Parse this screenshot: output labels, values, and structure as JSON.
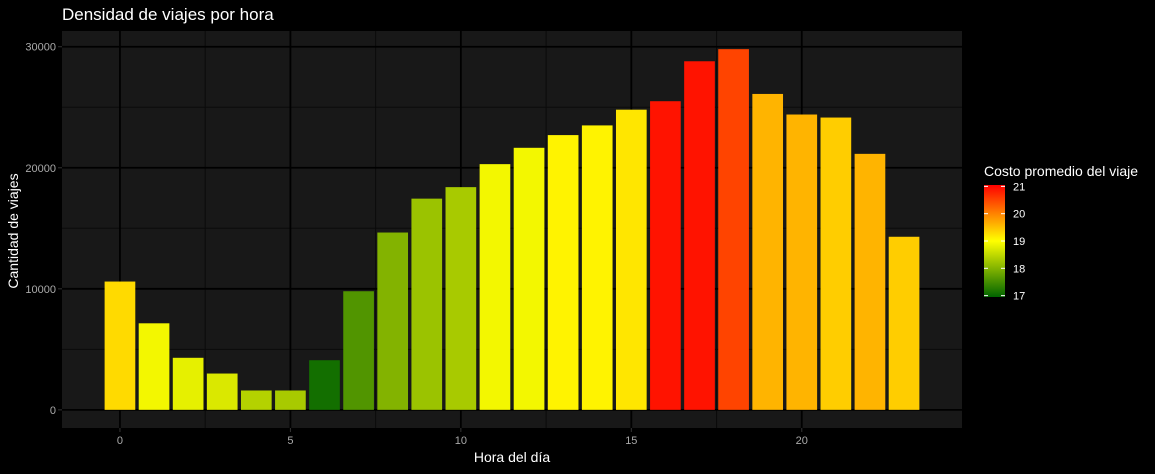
{
  "chart_data": {
    "type": "bar",
    "title": "Densidad de viajes por hora",
    "xlabel": "Hora del día",
    "ylabel": "Cantidad de viajes",
    "x": [
      0,
      1,
      2,
      3,
      4,
      5,
      6,
      7,
      8,
      9,
      10,
      11,
      12,
      13,
      14,
      15,
      16,
      17,
      18,
      19,
      20,
      21,
      22,
      23
    ],
    "values": [
      10600,
      7150,
      4300,
      3000,
      1600,
      1600,
      4100,
      9800,
      14650,
      17450,
      18400,
      20300,
      21650,
      22700,
      23500,
      24800,
      25500,
      28800,
      29800,
      26100,
      24400,
      24150,
      21150,
      14300
    ],
    "fill_values": [
      19.3,
      18.9,
      18.8,
      18.7,
      18.4,
      18.3,
      17.1,
      17.6,
      18.0,
      18.2,
      18.3,
      18.9,
      18.9,
      19.1,
      19.1,
      19.2,
      20.9,
      20.9,
      20.5,
      19.6,
      19.6,
      19.4,
      19.6,
      19.4
    ],
    "xlim": [
      -1.7,
      24.7
    ],
    "ylim": [
      -1500,
      31300
    ],
    "x_ticks": [
      0,
      5,
      10,
      15,
      20
    ],
    "y_ticks": [
      0,
      10000,
      20000,
      30000
    ],
    "grid": true,
    "legend": {
      "title": "Costo promedio del viaje",
      "position": "right",
      "range": [
        16.95,
        21.05
      ],
      "ticks": [
        17,
        18,
        19,
        20,
        21
      ],
      "colors": [
        "#006400",
        "#ffff00",
        "#ff0000"
      ]
    },
    "colors": {
      "background": "#000000",
      "panel": "#181818",
      "grid_major": "#000000",
      "grid_minor": "#0a0a0a"
    }
  }
}
